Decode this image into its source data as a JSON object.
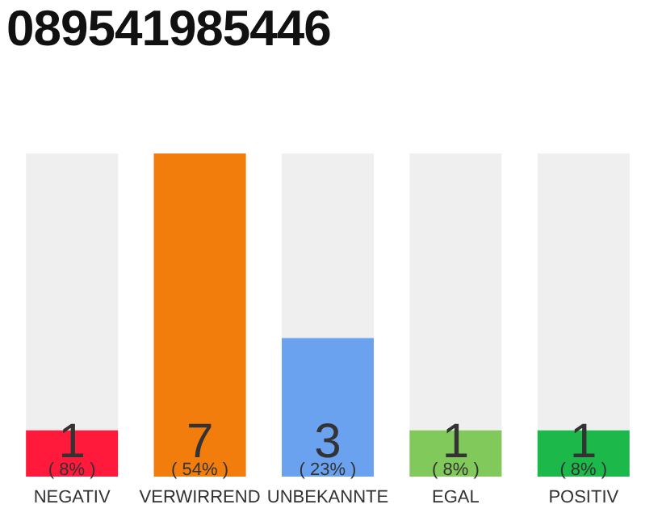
{
  "chart_data": {
    "type": "bar",
    "title": "089541985446",
    "categories": [
      "NEGATIV",
      "VERWIRREND",
      "UNBEKANNTE",
      "EGAL",
      "POSITIV"
    ],
    "values": [
      1,
      7,
      3,
      1,
      1
    ],
    "colors": [
      "#ff1a3c",
      "#f27d0c",
      "#6aa2f0",
      "#80c95a",
      "#1db84a"
    ],
    "ylim": [
      0,
      7
    ],
    "tick_labels": "x",
    "data_labels": true,
    "annotations": [
      {
        "text": "( 8% )",
        "x": "NEGATIV"
      },
      {
        "text": "( 54% )",
        "x": "VERWIRREND"
      },
      {
        "text": "( 23% )",
        "x": "UNBEKANNTE"
      },
      {
        "text": "( 8% )",
        "x": "EGAL"
      },
      {
        "text": "( 8% )",
        "x": "POSITIV"
      }
    ]
  }
}
